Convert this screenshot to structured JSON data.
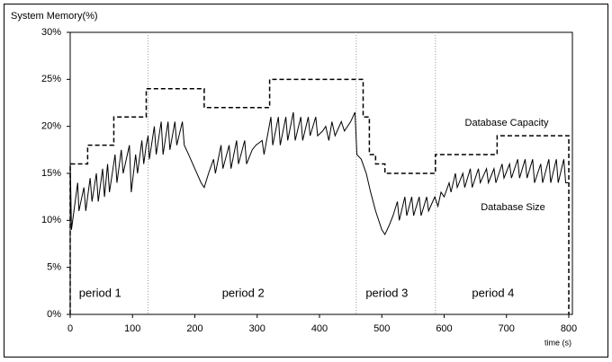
{
  "chart_data": {
    "type": "line",
    "y_label": "System Memory(%)",
    "x_label": "time (s)",
    "xlim": [
      0,
      800
    ],
    "xticks": [
      0,
      100,
      200,
      300,
      400,
      500,
      600,
      700,
      800
    ],
    "ylim": [
      0,
      30
    ],
    "yticks": [
      {
        "value": 0,
        "label": "0%"
      },
      {
        "value": 5,
        "label": "5%"
      },
      {
        "value": 10,
        "label": "10%"
      },
      {
        "value": 15,
        "label": "15%"
      },
      {
        "value": 20,
        "label": "20%"
      },
      {
        "value": 25,
        "label": "25%"
      },
      {
        "value": 30,
        "label": "30%"
      }
    ],
    "periods": [
      {
        "label": "period 1",
        "start": 0,
        "end": 125
      },
      {
        "label": "period 2",
        "start": 125,
        "end": 459
      },
      {
        "label": "period 3",
        "start": 459,
        "end": 586
      },
      {
        "label": "period 4",
        "start": 586,
        "end": 800
      }
    ],
    "series": [
      {
        "name": "Database Capacity",
        "color": "#000000",
        "dashed": true,
        "x": [
          0,
          0,
          28,
          28,
          70,
          70,
          122,
          122,
          215,
          215,
          320,
          320,
          470,
          470,
          480,
          480,
          490,
          490,
          505,
          505,
          586,
          586,
          685,
          685,
          800,
          800
        ],
        "values": [
          0,
          16,
          16,
          18,
          18,
          21,
          21,
          24,
          24,
          22,
          22,
          25,
          25,
          21,
          21,
          17,
          17,
          16,
          16,
          15,
          15,
          17,
          17,
          19,
          19,
          0
        ]
      },
      {
        "name": "Database Size",
        "color": "#000000",
        "dashed": false,
        "x": [
          0,
          2,
          8,
          12,
          14,
          22,
          25,
          32,
          35,
          42,
          45,
          52,
          55,
          60,
          63,
          72,
          75,
          82,
          85,
          95,
          98,
          105,
          108,
          115,
          118,
          122,
          125,
          127,
          135,
          138,
          146,
          149,
          157,
          160,
          168,
          171,
          180,
          183,
          190,
          200,
          210,
          215,
          222,
          230,
          233,
          242,
          245,
          255,
          258,
          267,
          270,
          280,
          283,
          292,
          298,
          308,
          311,
          322,
          325,
          334,
          337,
          346,
          349,
          358,
          361,
          370,
          373,
          382,
          385,
          394,
          397,
          405,
          410,
          415,
          420,
          425,
          435,
          440,
          450,
          457,
          460,
          467,
          475,
          482,
          490,
          500,
          505,
          512,
          518,
          525,
          528,
          537,
          540,
          548,
          551,
          560,
          563,
          572,
          575,
          585,
          590,
          595,
          600,
          608,
          611,
          618,
          621,
          630,
          633,
          642,
          645,
          655,
          658,
          668,
          671,
          680,
          683,
          693,
          696,
          705,
          708,
          718,
          721,
          730,
          733,
          742,
          745,
          755,
          758,
          768,
          771,
          780,
          783,
          792,
          795,
          800
        ],
        "values": [
          16.5,
          9,
          12,
          14,
          11,
          13.5,
          11,
          14.5,
          12,
          15,
          12,
          15.5,
          12.5,
          16,
          13,
          17,
          14,
          17.5,
          15,
          18,
          13,
          17,
          15,
          18.5,
          16,
          18,
          19,
          16.5,
          20,
          17,
          20.5,
          17,
          20.5,
          17.5,
          20.5,
          18,
          20.5,
          18,
          17,
          15.5,
          14,
          13.5,
          15,
          16.5,
          15,
          18,
          15.5,
          18,
          15.5,
          18.5,
          16,
          18.5,
          16,
          17.5,
          18,
          18.5,
          17,
          21,
          18,
          21,
          18,
          21,
          18.5,
          21.5,
          18.5,
          21,
          18.5,
          21,
          19,
          21,
          19,
          19.5,
          20,
          18.5,
          20.5,
          19,
          20.5,
          19.5,
          20.5,
          21.5,
          17,
          16.5,
          15,
          13,
          11,
          9,
          8.5,
          9.5,
          10.5,
          12,
          10,
          12.5,
          10.5,
          12.5,
          10.5,
          12.5,
          10.5,
          12.5,
          11,
          12.5,
          11.5,
          13,
          12.5,
          14,
          13,
          15,
          13.5,
          15,
          13.5,
          15.5,
          13.5,
          15.5,
          14,
          15.5,
          14,
          15.5,
          14,
          16,
          14.5,
          16,
          14.5,
          16.5,
          14.5,
          16.5,
          14.5,
          16.5,
          14,
          16,
          14,
          16.5,
          14,
          16.5,
          14,
          16.5,
          14,
          14
        ]
      }
    ]
  }
}
